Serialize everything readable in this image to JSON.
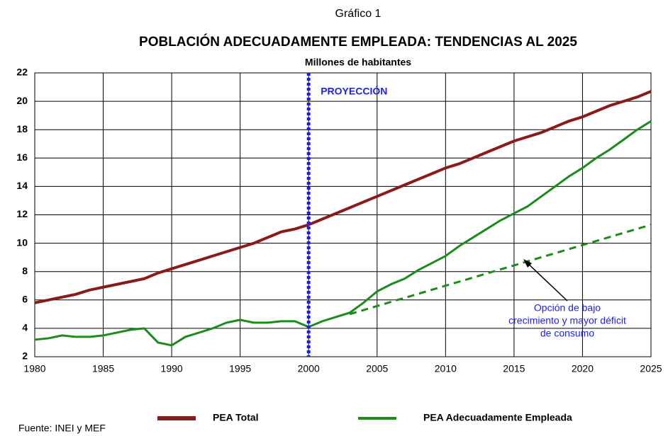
{
  "chart_data": {
    "type": "line",
    "chart_label": "Gráfico 1",
    "title": "POBLACIÓN ADECUADAMENTE EMPLEADA: TENDENCIAS AL 2025",
    "subtitle": "Millones de habitantes",
    "x": [
      1980,
      1981,
      1982,
      1983,
      1984,
      1985,
      1986,
      1987,
      1988,
      1989,
      1990,
      1991,
      1992,
      1993,
      1994,
      1995,
      1996,
      1997,
      1998,
      1999,
      2000,
      2001,
      2002,
      2003,
      2004,
      2005,
      2006,
      2007,
      2008,
      2009,
      2010,
      2011,
      2012,
      2013,
      2014,
      2015,
      2016,
      2017,
      2018,
      2019,
      2020,
      2021,
      2022,
      2023,
      2024,
      2025
    ],
    "series": [
      {
        "name": "PEA Total",
        "color": "#8b1a1a",
        "values": [
          5.8,
          6.0,
          6.2,
          6.4,
          6.7,
          6.9,
          7.1,
          7.3,
          7.5,
          7.9,
          8.2,
          8.5,
          8.8,
          9.1,
          9.4,
          9.7,
          10.0,
          10.4,
          10.8,
          11.0,
          11.3,
          11.7,
          12.1,
          12.5,
          12.9,
          13.3,
          13.7,
          14.1,
          14.5,
          14.9,
          15.3,
          15.6,
          16.0,
          16.4,
          16.8,
          17.2,
          17.5,
          17.8,
          18.2,
          18.6,
          18.9,
          19.3,
          19.7,
          20.0,
          20.3,
          20.7
        ]
      },
      {
        "name": "PEA Adecuadamente Empleada",
        "color": "#1a8c1a",
        "values": [
          3.2,
          3.3,
          3.5,
          3.4,
          3.4,
          3.5,
          3.7,
          3.9,
          4.0,
          3.0,
          2.8,
          3.4,
          3.7,
          4.0,
          4.4,
          4.6,
          4.4,
          4.4,
          4.5,
          4.5,
          4.1,
          4.5,
          4.8,
          5.1,
          5.8,
          6.6,
          7.1,
          7.5,
          8.1,
          8.6,
          9.1,
          9.8,
          10.4,
          11.0,
          11.6,
          12.1,
          12.6,
          13.3,
          14.0,
          14.7,
          15.3,
          16.0,
          16.6,
          17.3,
          18.0,
          18.6
        ]
      },
      {
        "color": "#1a8c1a",
        "dashed": true,
        "x": [
          2003,
          2025
        ],
        "values": [
          5.0,
          11.3
        ]
      }
    ],
    "projection_x": 2000,
    "projection_label": "PROYECCIÓN",
    "annotation": [
      "Opción de bajo",
      "crecimiento y mayor déficit",
      "de consumo"
    ],
    "xlim": [
      1980,
      2025
    ],
    "xticks": [
      1980,
      1985,
      1990,
      1995,
      2000,
      2005,
      2010,
      2015,
      2020,
      2025
    ],
    "ylim": [
      2,
      22
    ],
    "yticks": [
      2,
      4,
      6,
      8,
      10,
      12,
      14,
      16,
      18,
      20,
      22
    ],
    "grid": true,
    "source": "Fuente: INEI y MEF"
  }
}
